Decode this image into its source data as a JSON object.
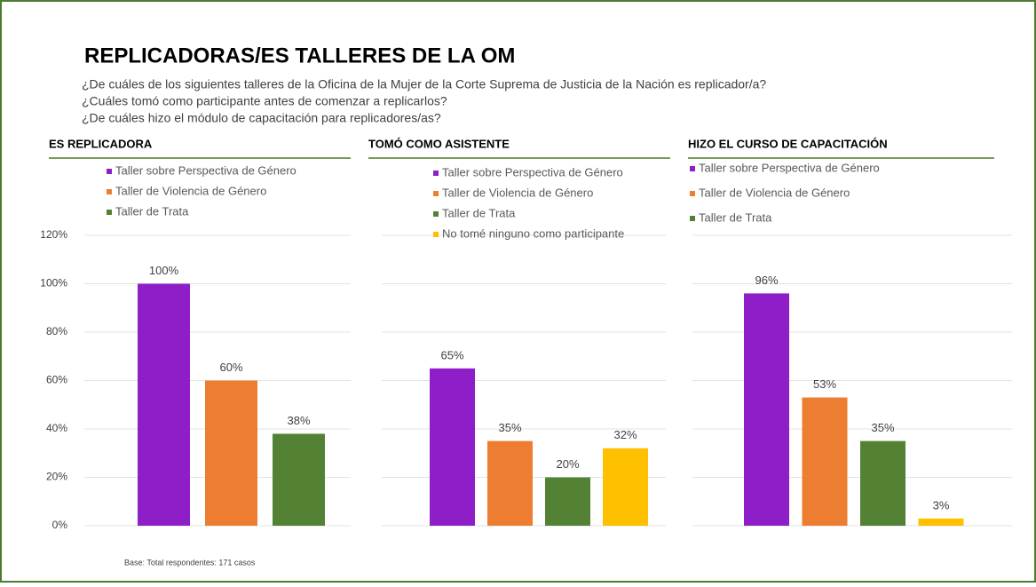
{
  "title": "REPLICADORAS/ES TALLERES DE LA OM",
  "subtitle": [
    "¿De cuáles de los siguientes talleres de la Oficina de la Mujer de la Corte Suprema de Justicia de la Nación es replicador/a?",
    "¿Cuáles tomó como participante antes de comenzar a replicarlos?",
    "¿De cuáles hizo el módulo de capacitación para replicadores/as?"
  ],
  "footnote": "Base: Total respondentes: 171 casos",
  "chart_data": [
    {
      "type": "bar",
      "title": "ES REPLICADORA",
      "categories": [
        "Taller sobre Perspectiva de Género",
        "Taller de Violencia de Género",
        "Taller de Trata"
      ],
      "colors": [
        "#8e1ec8",
        "#ed7d31",
        "#548235"
      ],
      "values": [
        100,
        60,
        38
      ],
      "value_labels": [
        "100%",
        "60%",
        "38%"
      ],
      "ylim": [
        0,
        120
      ],
      "yticks": [
        {
          "value": 0,
          "label": "0%"
        },
        {
          "value": 20,
          "label": "20%"
        },
        {
          "value": 40,
          "label": "40%"
        },
        {
          "value": 60,
          "label": "60%"
        },
        {
          "value": 80,
          "label": "80%"
        },
        {
          "value": 100,
          "label": "100%"
        },
        {
          "value": 120,
          "label": "120%"
        }
      ],
      "grid": true
    },
    {
      "type": "bar",
      "title": "TOMÓ COMO ASISTENTE",
      "categories": [
        "Taller sobre Perspectiva de Género",
        "Taller de Violencia de Género",
        "Taller de Trata",
        "No tomé ninguno como participante"
      ],
      "colors": [
        "#8e1ec8",
        "#ed7d31",
        "#548235",
        "#ffc000"
      ],
      "values": [
        65,
        35,
        20,
        32
      ],
      "value_labels": [
        "65%",
        "35%",
        "20%",
        "32%"
      ],
      "ylim": [
        0,
        120
      ],
      "grid_values": [
        0,
        20,
        40,
        60,
        80,
        100,
        120
      ],
      "grid": true
    },
    {
      "type": "bar",
      "title": "HIZO EL CURSO DE CAPACITACIÓN",
      "categories": [
        "Taller sobre Perspectiva de Género",
        "Taller de Violencia de Género",
        "Taller de Trata",
        null
      ],
      "colors": [
        "#8e1ec8",
        "#ed7d31",
        "#548235",
        "#ffc000"
      ],
      "values": [
        96,
        53,
        35,
        3
      ],
      "value_labels": [
        "96%",
        "53%",
        "35%",
        "3%"
      ],
      "ylim": [
        0,
        120
      ],
      "grid_values": [
        0,
        20,
        40,
        60,
        80,
        100,
        120
      ],
      "grid": true
    }
  ]
}
